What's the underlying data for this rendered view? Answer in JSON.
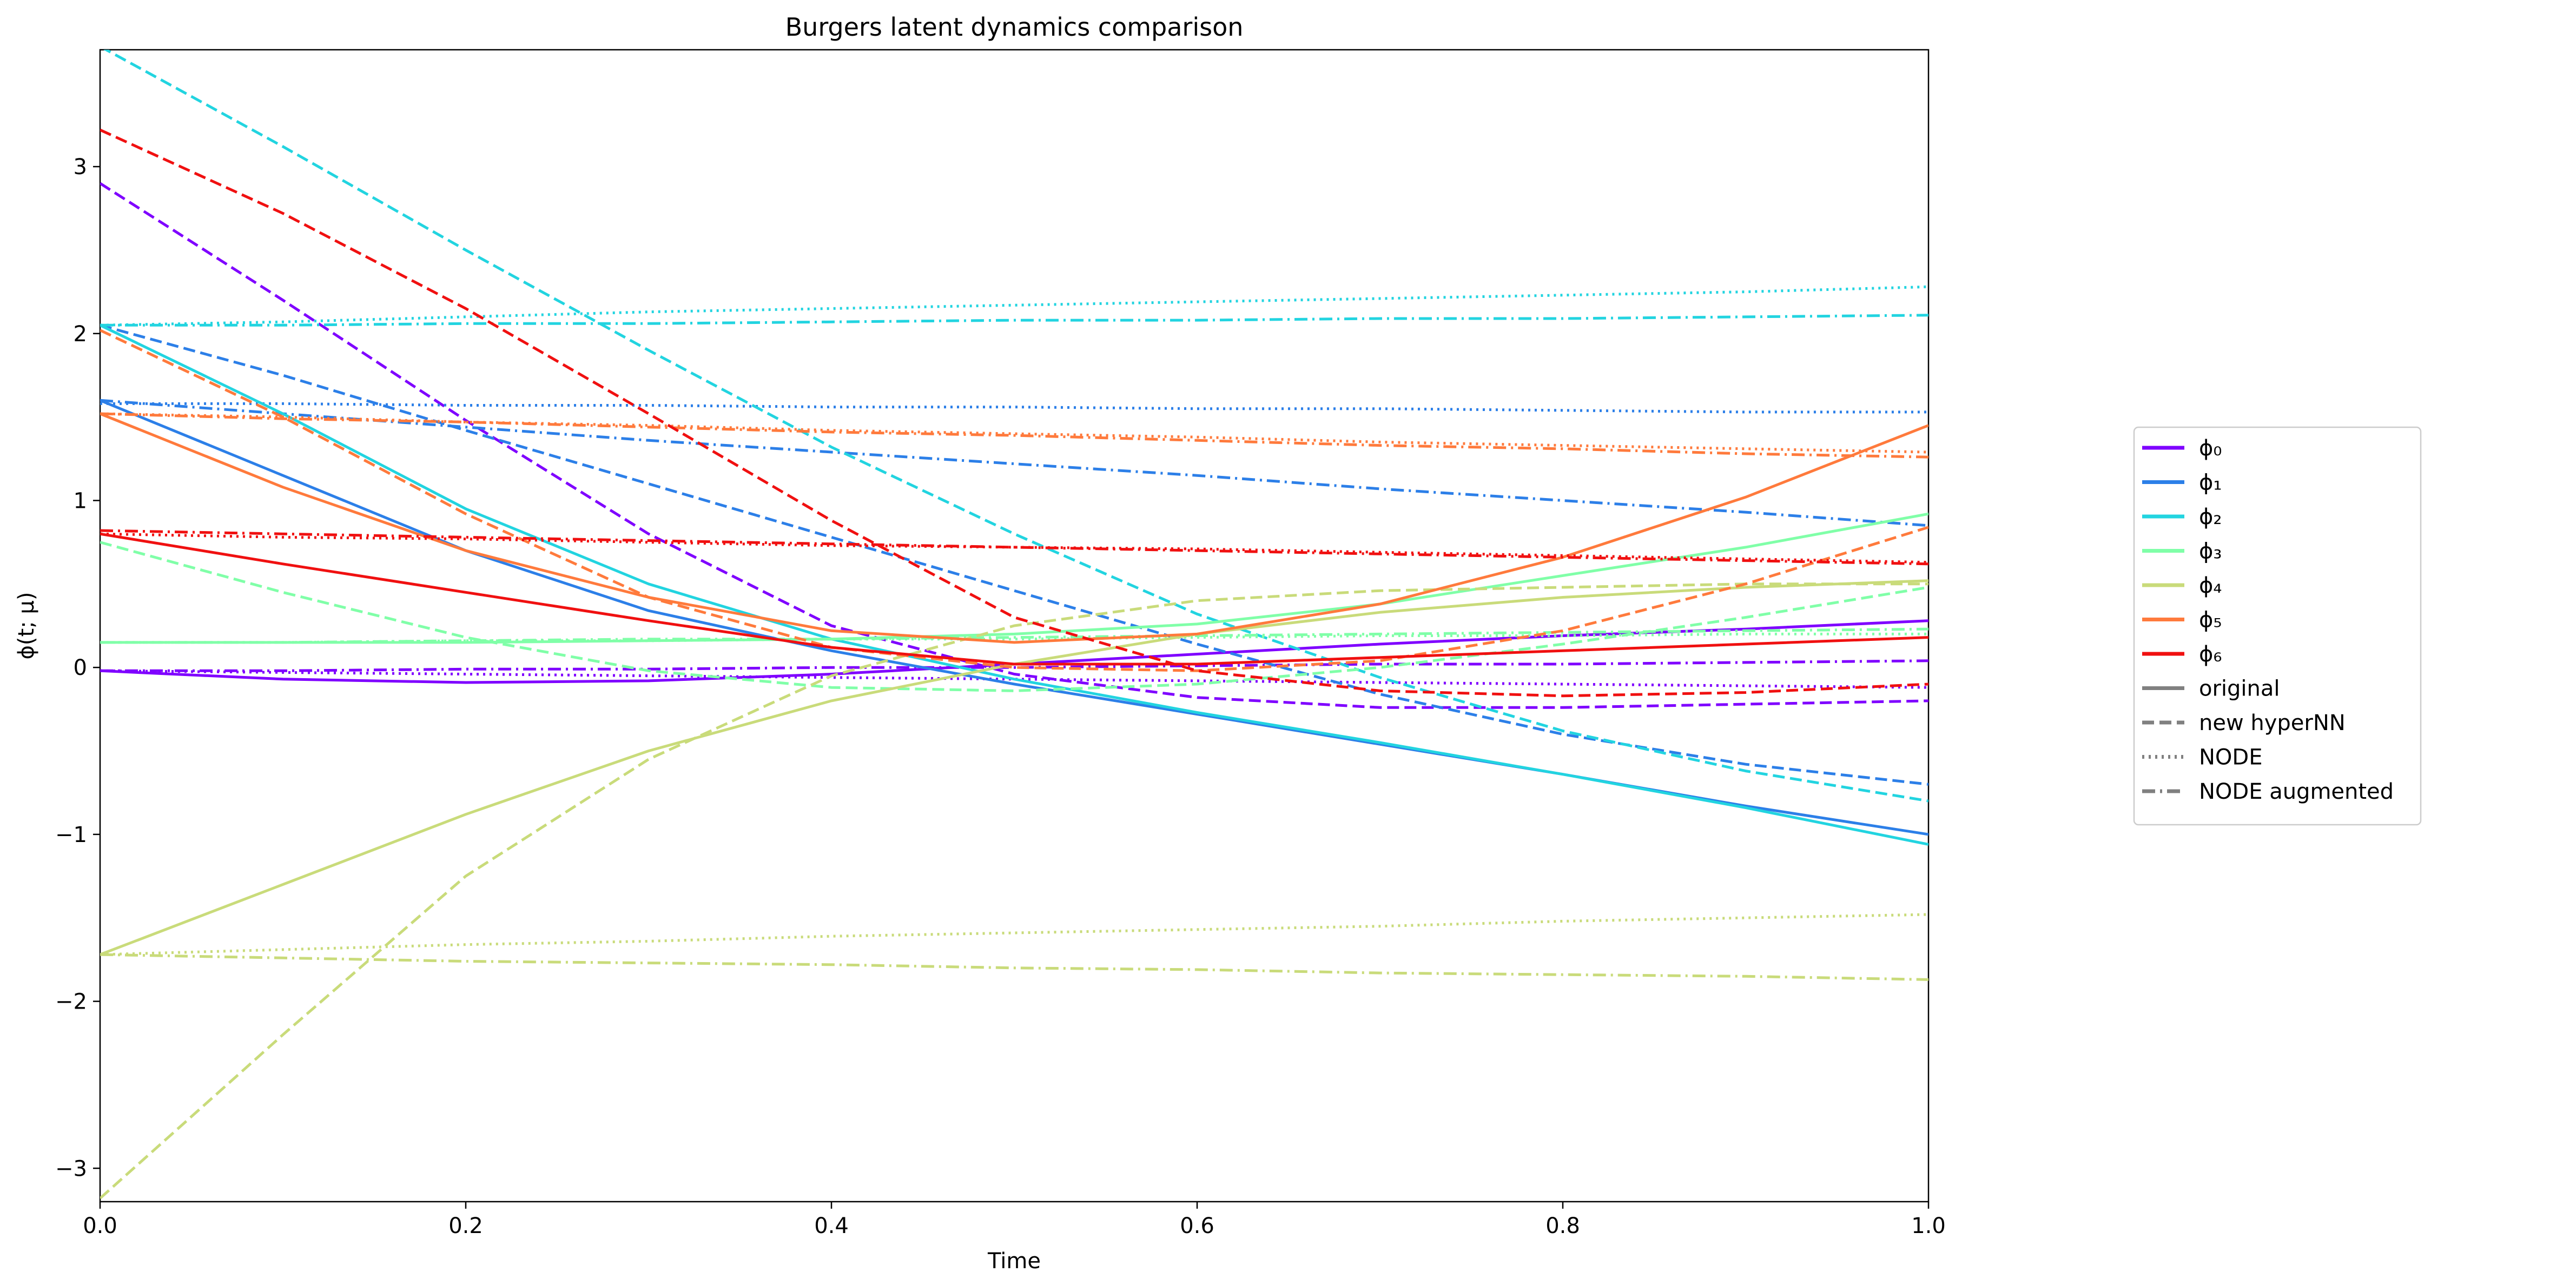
{
  "chart_data": {
    "type": "line",
    "title": "Burgers latent dynamics comparison",
    "xlabel": "Time",
    "ylabel": "ϕ(t; μ)",
    "xlim": [
      0.0,
      1.0
    ],
    "ylim": [
      -3.2,
      3.7
    ],
    "xticks": [
      0.0,
      0.2,
      0.4,
      0.6,
      0.8,
      1.0
    ],
    "xtick_labels": [
      "0.0",
      "0.2",
      "0.4",
      "0.6",
      "0.8",
      "1.0"
    ],
    "yticks": [
      -3,
      -2,
      -1,
      0,
      1,
      2,
      3
    ],
    "ytick_labels": [
      "−3",
      "−2",
      "−1",
      "0",
      "1",
      "2",
      "3"
    ],
    "grid": false,
    "legend_position": "right",
    "x": [
      0.0,
      0.1,
      0.2,
      0.3,
      0.4,
      0.5,
      0.6,
      0.7,
      0.8,
      0.9,
      1.0
    ],
    "colors": [
      "#7f00ff",
      "#2c7fe8",
      "#22d4e0",
      "#80ffa8",
      "#c9db7a",
      "#ff7a3c",
      "#f01010"
    ],
    "methods": [
      {
        "key": "original",
        "label": "original",
        "style": "solid"
      },
      {
        "key": "hypernn",
        "label": "new hyperNN",
        "style": "dashed"
      },
      {
        "key": "node",
        "label": "NODE",
        "style": "dotted"
      },
      {
        "key": "node_aug",
        "label": "NODE augmented",
        "style": "dashdot"
      }
    ],
    "series": [
      {
        "name": "ϕ₀",
        "original": [
          -0.02,
          -0.07,
          -0.09,
          -0.08,
          -0.04,
          0.02,
          0.08,
          0.14,
          0.19,
          0.23,
          0.28
        ],
        "hypernn": [
          2.9,
          2.2,
          1.48,
          0.8,
          0.25,
          -0.04,
          -0.18,
          -0.24,
          -0.24,
          -0.22,
          -0.2
        ],
        "node": [
          -0.02,
          -0.03,
          -0.04,
          -0.05,
          -0.06,
          -0.07,
          -0.08,
          -0.09,
          -0.1,
          -0.11,
          -0.12
        ],
        "node_aug": [
          -0.02,
          -0.02,
          -0.01,
          -0.01,
          0.0,
          0.0,
          0.01,
          0.02,
          0.02,
          0.03,
          0.04
        ]
      },
      {
        "name": "ϕ₁",
        "original": [
          1.6,
          1.15,
          0.7,
          0.34,
          0.1,
          -0.1,
          -0.28,
          -0.46,
          -0.64,
          -0.83,
          -1.0
        ],
        "hypernn": [
          2.05,
          1.75,
          1.42,
          1.1,
          0.78,
          0.46,
          0.14,
          -0.16,
          -0.4,
          -0.58,
          -0.7
        ],
        "node": [
          1.58,
          1.58,
          1.57,
          1.57,
          1.56,
          1.56,
          1.55,
          1.55,
          1.54,
          1.53,
          1.53
        ],
        "node_aug": [
          1.6,
          1.52,
          1.44,
          1.36,
          1.29,
          1.22,
          1.15,
          1.07,
          1.0,
          0.93,
          0.85
        ]
      },
      {
        "name": "ϕ₂",
        "original": [
          2.05,
          1.52,
          0.95,
          0.5,
          0.17,
          -0.07,
          -0.27,
          -0.45,
          -0.64,
          -0.84,
          -1.06
        ],
        "hypernn": [
          3.72,
          3.12,
          2.5,
          1.9,
          1.32,
          0.8,
          0.32,
          -0.06,
          -0.38,
          -0.62,
          -0.8
        ],
        "node": [
          2.05,
          2.07,
          2.1,
          2.13,
          2.15,
          2.17,
          2.19,
          2.21,
          2.23,
          2.25,
          2.28
        ],
        "node_aug": [
          2.05,
          2.05,
          2.06,
          2.06,
          2.07,
          2.08,
          2.08,
          2.09,
          2.09,
          2.1,
          2.11
        ]
      },
      {
        "name": "ϕ₃",
        "original": [
          0.15,
          0.15,
          0.15,
          0.16,
          0.17,
          0.2,
          0.26,
          0.38,
          0.55,
          0.72,
          0.92
        ],
        "hypernn": [
          0.75,
          0.45,
          0.18,
          -0.02,
          -0.12,
          -0.14,
          -0.1,
          0.0,
          0.14,
          0.3,
          0.48
        ],
        "node": [
          0.15,
          0.15,
          0.16,
          0.16,
          0.17,
          0.17,
          0.18,
          0.19,
          0.19,
          0.2,
          0.2
        ],
        "node_aug": [
          0.15,
          0.15,
          0.16,
          0.17,
          0.17,
          0.18,
          0.19,
          0.2,
          0.21,
          0.22,
          0.23
        ]
      },
      {
        "name": "ϕ₄",
        "original": [
          -1.72,
          -1.3,
          -0.88,
          -0.5,
          -0.2,
          0.02,
          0.2,
          0.33,
          0.42,
          0.48,
          0.52
        ],
        "hypernn": [
          -3.18,
          -2.2,
          -1.25,
          -0.55,
          -0.05,
          0.25,
          0.4,
          0.46,
          0.48,
          0.5,
          0.5
        ],
        "node": [
          -1.72,
          -1.69,
          -1.66,
          -1.64,
          -1.61,
          -1.59,
          -1.57,
          -1.55,
          -1.52,
          -1.5,
          -1.48
        ],
        "node_aug": [
          -1.72,
          -1.74,
          -1.76,
          -1.77,
          -1.78,
          -1.8,
          -1.81,
          -1.83,
          -1.84,
          -1.85,
          -1.87
        ]
      },
      {
        "name": "ϕ₅",
        "original": [
          1.52,
          1.08,
          0.7,
          0.42,
          0.22,
          0.15,
          0.2,
          0.38,
          0.66,
          1.02,
          1.45
        ],
        "hypernn": [
          2.02,
          1.5,
          0.92,
          0.42,
          0.12,
          0.0,
          -0.02,
          0.04,
          0.22,
          0.5,
          0.84
        ],
        "node": [
          1.52,
          1.5,
          1.47,
          1.45,
          1.42,
          1.4,
          1.38,
          1.35,
          1.33,
          1.31,
          1.29
        ],
        "node_aug": [
          1.52,
          1.49,
          1.47,
          1.44,
          1.41,
          1.39,
          1.36,
          1.33,
          1.31,
          1.28,
          1.26
        ]
      },
      {
        "name": "ϕ₆",
        "original": [
          0.8,
          0.62,
          0.45,
          0.28,
          0.12,
          0.02,
          0.02,
          0.06,
          0.1,
          0.14,
          0.18
        ],
        "hypernn": [
          3.22,
          2.72,
          2.15,
          1.52,
          0.88,
          0.3,
          -0.02,
          -0.14,
          -0.17,
          -0.15,
          -0.1
        ],
        "node": [
          0.8,
          0.78,
          0.77,
          0.75,
          0.73,
          0.72,
          0.71,
          0.69,
          0.67,
          0.65,
          0.63
        ],
        "node_aug": [
          0.82,
          0.8,
          0.78,
          0.76,
          0.74,
          0.72,
          0.7,
          0.68,
          0.66,
          0.64,
          0.62
        ]
      }
    ]
  }
}
